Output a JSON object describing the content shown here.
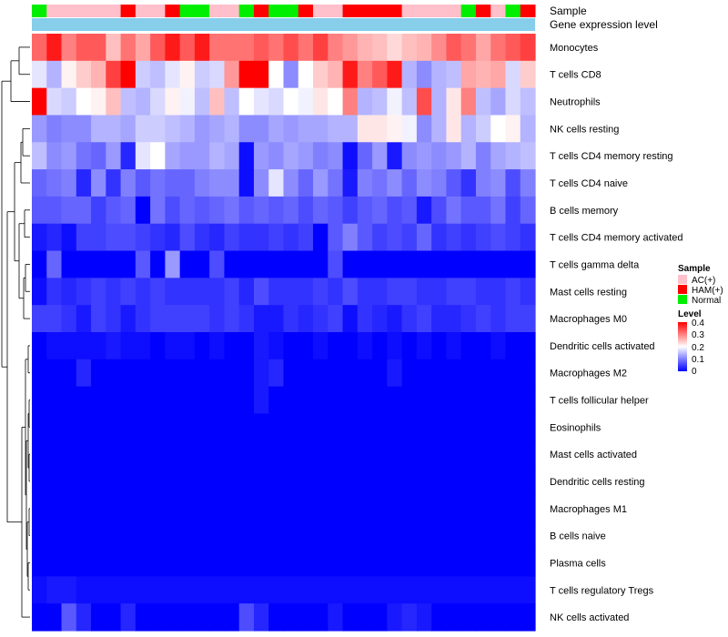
{
  "chart_data": {
    "type": "heatmap",
    "annotation_labels": [
      "Sample",
      "Gene expression level"
    ],
    "columns": 34,
    "rows": [
      "Monocytes",
      "T cells CD8",
      "Neutrophils",
      "NK cells resting",
      "T cells CD4 memory resting",
      "T cells CD4 naive",
      "B cells memory",
      "T cells CD4 memory activated",
      "T cells gamma delta",
      "Mast cells resting",
      "Macrophages M0",
      "Dendritic cells activated",
      "Macrophages M2",
      "T cells follicular helper",
      "Eosinophils",
      "Mast cells activated",
      "Dendritic cells resting",
      "Macrophages M1",
      "B cells naive",
      "Plasma cells",
      "T cells regulatory  Tregs",
      "NK cells activated"
    ],
    "sample_groups": [
      "Normal",
      "AC(+)",
      "AC(+)",
      "AC(+)",
      "AC(+)",
      "AC(+)",
      "HAM(+)",
      "AC(+)",
      "AC(+)",
      "HAM(+)",
      "Normal",
      "Normal",
      "AC(+)",
      "AC(+)",
      "Normal",
      "HAM(+)",
      "Normal",
      "Normal",
      "HAM(+)",
      "AC(+)",
      "AC(+)",
      "HAM(+)",
      "HAM(+)",
      "HAM(+)",
      "HAM(+)",
      "AC(+)",
      "AC(+)",
      "AC(+)",
      "AC(+)",
      "Normal",
      "HAM(+)",
      "AC(+)",
      "Normal",
      "HAM(+)"
    ],
    "values": [
      [
        0.32,
        0.38,
        0.3,
        0.33,
        0.33,
        0.25,
        0.31,
        0.27,
        0.33,
        0.38,
        0.33,
        0.38,
        0.31,
        0.31,
        0.31,
        0.33,
        0.31,
        0.34,
        0.31,
        0.35,
        0.3,
        0.28,
        0.26,
        0.25,
        0.23,
        0.25,
        0.26,
        0.29,
        0.33,
        0.31,
        0.27,
        0.31,
        0.33,
        0.35
      ],
      [
        0.18,
        0.14,
        0.21,
        0.24,
        0.26,
        0.35,
        0.4,
        0.16,
        0.15,
        0.18,
        0.21,
        0.16,
        0.17,
        0.28,
        0.4,
        0.4,
        0.2,
        0.11,
        0.2,
        0.24,
        0.26,
        0.38,
        0.3,
        0.33,
        0.38,
        0.14,
        0.11,
        0.14,
        0.15,
        0.27,
        0.26,
        0.27,
        0.17,
        0.24
      ],
      [
        0.4,
        0.17,
        0.16,
        0.2,
        0.21,
        0.25,
        0.15,
        0.14,
        0.17,
        0.21,
        0.19,
        0.15,
        0.25,
        0.15,
        0.2,
        0.18,
        0.17,
        0.2,
        0.19,
        0.22,
        0.2,
        0.3,
        0.14,
        0.15,
        0.19,
        0.15,
        0.34,
        0.14,
        0.22,
        0.3,
        0.15,
        0.13,
        0.17,
        0.15
      ],
      [
        0.12,
        0.1,
        0.11,
        0.11,
        0.14,
        0.14,
        0.13,
        0.16,
        0.16,
        0.15,
        0.14,
        0.12,
        0.13,
        0.14,
        0.11,
        0.11,
        0.13,
        0.12,
        0.13,
        0.13,
        0.14,
        0.14,
        0.22,
        0.22,
        0.21,
        0.19,
        0.11,
        0.14,
        0.22,
        0.14,
        0.16,
        0.2,
        0.21,
        0.14
      ],
      [
        0.15,
        0.11,
        0.12,
        0.09,
        0.08,
        0.12,
        0.03,
        0.18,
        0.2,
        0.13,
        0.12,
        0.12,
        0.14,
        0.13,
        0.01,
        0.12,
        0.11,
        0.13,
        0.12,
        0.1,
        0.11,
        0.01,
        0.08,
        0.12,
        0.02,
        0.11,
        0.12,
        0.11,
        0.12,
        0.14,
        0.1,
        0.13,
        0.14,
        0.15
      ],
      [
        0.08,
        0.09,
        0.1,
        0.03,
        0.11,
        0.04,
        0.1,
        0.07,
        0.09,
        0.08,
        0.08,
        0.1,
        0.11,
        0.11,
        0.01,
        0.11,
        0.18,
        0.11,
        0.08,
        0.12,
        0.09,
        0.02,
        0.1,
        0.09,
        0.11,
        0.08,
        0.11,
        0.1,
        0.07,
        0.04,
        0.1,
        0.11,
        0.06,
        0.1
      ],
      [
        0.07,
        0.07,
        0.08,
        0.08,
        0.05,
        0.07,
        0.08,
        0.0,
        0.09,
        0.06,
        0.08,
        0.07,
        0.08,
        0.09,
        0.07,
        0.08,
        0.07,
        0.08,
        0.06,
        0.08,
        0.07,
        0.05,
        0.07,
        0.08,
        0.06,
        0.07,
        0.02,
        0.06,
        0.09,
        0.07,
        0.07,
        0.09,
        0.05,
        0.08
      ],
      [
        0.02,
        0.03,
        0.01,
        0.05,
        0.05,
        0.06,
        0.06,
        0.05,
        0.04,
        0.03,
        0.06,
        0.04,
        0.03,
        0.05,
        0.04,
        0.04,
        0.05,
        0.04,
        0.05,
        0.0,
        0.07,
        0.1,
        0.07,
        0.05,
        0.06,
        0.05,
        0.08,
        0.04,
        0.05,
        0.04,
        0.05,
        0.06,
        0.05,
        0.04
      ],
      [
        0.0,
        0.08,
        0.0,
        0.0,
        0.0,
        0.0,
        0.0,
        0.07,
        0.0,
        0.12,
        0.0,
        0.0,
        0.06,
        0.0,
        0.0,
        0.0,
        0.0,
        0.0,
        0.0,
        0.0,
        0.06,
        0.0,
        0.0,
        0.0,
        0.0,
        0.0,
        0.0,
        0.0,
        0.0,
        0.0,
        0.0,
        0.0,
        0.0,
        0.0
      ],
      [
        0.01,
        0.04,
        0.03,
        0.04,
        0.05,
        0.04,
        0.05,
        0.04,
        0.05,
        0.04,
        0.04,
        0.04,
        0.04,
        0.05,
        0.03,
        0.06,
        0.04,
        0.04,
        0.04,
        0.05,
        0.04,
        0.06,
        0.04,
        0.04,
        0.05,
        0.05,
        0.04,
        0.04,
        0.05,
        0.05,
        0.04,
        0.04,
        0.05,
        0.04
      ],
      [
        0.05,
        0.05,
        0.04,
        0.02,
        0.05,
        0.04,
        0.02,
        0.04,
        0.05,
        0.05,
        0.05,
        0.05,
        0.04,
        0.05,
        0.04,
        0.02,
        0.02,
        0.04,
        0.03,
        0.04,
        0.05,
        0.01,
        0.04,
        0.03,
        0.02,
        0.04,
        0.05,
        0.03,
        0.03,
        0.04,
        0.05,
        0.04,
        0.05,
        0.05
      ],
      [
        0.0,
        0.01,
        0.01,
        0.01,
        0.01,
        0.02,
        0.01,
        0.01,
        0.0,
        0.01,
        0.01,
        0.0,
        0.01,
        0.0,
        0.0,
        0.02,
        0.01,
        0.0,
        0.0,
        0.01,
        0.0,
        0.0,
        0.01,
        0.0,
        0.01,
        0.0,
        0.01,
        0.0,
        0.01,
        0.0,
        0.0,
        0.01,
        0.0,
        0.0
      ],
      [
        0.0,
        0.0,
        0.0,
        0.03,
        0.0,
        0.0,
        0.0,
        0.0,
        0.0,
        0.0,
        0.0,
        0.0,
        0.0,
        0.0,
        0.0,
        0.02,
        0.03,
        0.0,
        0.0,
        0.0,
        0.0,
        0.0,
        0.0,
        0.0,
        0.02,
        0.0,
        0.0,
        0.0,
        0.0,
        0.0,
        0.0,
        0.0,
        0.0,
        0.0
      ],
      [
        0.0,
        0.0,
        0.0,
        0.0,
        0.0,
        0.0,
        0.0,
        0.0,
        0.0,
        0.0,
        0.0,
        0.0,
        0.0,
        0.0,
        0.0,
        0.02,
        0.0,
        0.0,
        0.0,
        0.0,
        0.0,
        0.0,
        0.0,
        0.0,
        0.0,
        0.0,
        0.0,
        0.0,
        0.0,
        0.0,
        0.0,
        0.0,
        0.0,
        0.0
      ],
      [
        0.0,
        0.0,
        0.0,
        0.0,
        0.0,
        0.0,
        0.0,
        0.0,
        0.0,
        0.0,
        0.0,
        0.0,
        0.0,
        0.0,
        0.0,
        0.0,
        0.0,
        0.0,
        0.0,
        0.0,
        0.0,
        0.0,
        0.0,
        0.0,
        0.0,
        0.0,
        0.0,
        0.0,
        0.0,
        0.0,
        0.0,
        0.0,
        0.0,
        0.0
      ],
      [
        0.0,
        0.0,
        0.0,
        0.0,
        0.0,
        0.0,
        0.0,
        0.0,
        0.0,
        0.0,
        0.0,
        0.0,
        0.0,
        0.0,
        0.0,
        0.0,
        0.0,
        0.0,
        0.0,
        0.0,
        0.0,
        0.0,
        0.0,
        0.0,
        0.0,
        0.0,
        0.0,
        0.0,
        0.0,
        0.0,
        0.0,
        0.0,
        0.0,
        0.0
      ],
      [
        0.0,
        0.0,
        0.0,
        0.0,
        0.0,
        0.0,
        0.0,
        0.0,
        0.0,
        0.0,
        0.0,
        0.0,
        0.0,
        0.0,
        0.0,
        0.0,
        0.0,
        0.0,
        0.0,
        0.0,
        0.0,
        0.0,
        0.0,
        0.0,
        0.0,
        0.0,
        0.0,
        0.0,
        0.0,
        0.0,
        0.0,
        0.0,
        0.0,
        0.0
      ],
      [
        0.0,
        0.0,
        0.0,
        0.0,
        0.0,
        0.0,
        0.0,
        0.0,
        0.0,
        0.0,
        0.0,
        0.0,
        0.0,
        0.0,
        0.0,
        0.0,
        0.0,
        0.0,
        0.0,
        0.0,
        0.0,
        0.0,
        0.0,
        0.0,
        0.0,
        0.0,
        0.0,
        0.0,
        0.0,
        0.0,
        0.0,
        0.0,
        0.0,
        0.0
      ],
      [
        0.0,
        0.0,
        0.0,
        0.0,
        0.0,
        0.0,
        0.0,
        0.0,
        0.0,
        0.0,
        0.0,
        0.0,
        0.0,
        0.0,
        0.0,
        0.0,
        0.0,
        0.0,
        0.0,
        0.0,
        0.0,
        0.0,
        0.0,
        0.0,
        0.0,
        0.0,
        0.0,
        0.0,
        0.0,
        0.0,
        0.0,
        0.0,
        0.0,
        0.0
      ],
      [
        0.0,
        0.0,
        0.0,
        0.0,
        0.0,
        0.0,
        0.0,
        0.0,
        0.0,
        0.0,
        0.0,
        0.0,
        0.0,
        0.0,
        0.0,
        0.0,
        0.0,
        0.0,
        0.0,
        0.0,
        0.0,
        0.0,
        0.0,
        0.0,
        0.0,
        0.0,
        0.0,
        0.0,
        0.0,
        0.0,
        0.0,
        0.0,
        0.0,
        0.0
      ],
      [
        0.01,
        0.02,
        0.02,
        0.01,
        0.01,
        0.01,
        0.01,
        0.01,
        0.01,
        0.01,
        0.01,
        0.01,
        0.01,
        0.01,
        0.01,
        0.01,
        0.01,
        0.01,
        0.01,
        0.01,
        0.01,
        0.01,
        0.01,
        0.01,
        0.01,
        0.01,
        0.01,
        0.01,
        0.01,
        0.01,
        0.01,
        0.01,
        0.01,
        0.01
      ],
      [
        0.0,
        0.0,
        0.07,
        0.03,
        0.0,
        0.0,
        0.03,
        0.0,
        0.0,
        0.0,
        0.0,
        0.0,
        0.0,
        0.0,
        0.06,
        0.03,
        0.0,
        0.0,
        0.0,
        0.0,
        0.02,
        0.0,
        0.0,
        0.0,
        0.02,
        0.03,
        0.02,
        0.0,
        0.0,
        0.0,
        0.0,
        0.0,
        0.0,
        0.0
      ]
    ],
    "legend": {
      "sample": {
        "title": "Sample",
        "items": [
          {
            "label": "AC(+)",
            "color": "#ffc0cb"
          },
          {
            "label": "HAM(+)",
            "color": "#ff0000"
          },
          {
            "label": "Normal",
            "color": "#00ee00"
          }
        ]
      },
      "level": {
        "title": "Level",
        "ticks": [
          "0.4",
          "0.3",
          "0.2",
          "0.1",
          "0"
        ],
        "range": [
          0,
          0.4
        ]
      }
    },
    "expression_bar_color": "#87ceeb",
    "colors": {
      "low": "#0000ff",
      "mid": "#ffffff",
      "high": "#ff0000"
    }
  }
}
